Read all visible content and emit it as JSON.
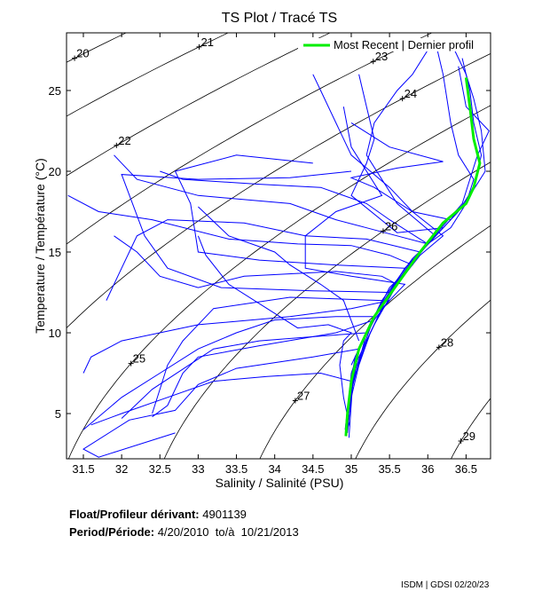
{
  "chart_data": {
    "type": "line",
    "title": "TS Plot / Tracé TS",
    "xlabel": "Salinity / Salinité (PSU)",
    "ylabel": "Temperature / Température (°C)",
    "xlim": [
      31.28,
      36.82
    ],
    "ylim": [
      2.2,
      28.57
    ],
    "xticks": [
      31.5,
      32,
      32.5,
      33,
      33.5,
      34,
      34.5,
      35,
      35.5,
      36,
      36.5
    ],
    "yticks": [
      5,
      10,
      15,
      20,
      25
    ],
    "legend": {
      "label": "Most Recent | Dernier profil",
      "placement": "top-right"
    },
    "density_contours": [
      {
        "sigma": 20,
        "label_T": 27.0
      },
      {
        "sigma": 21,
        "label_T": 27.7
      },
      {
        "sigma": 22,
        "label_T": 21.6
      },
      {
        "sigma": 23,
        "label_T": 26.8
      },
      {
        "sigma": 24,
        "label_T": 24.5
      },
      {
        "sigma": 25,
        "label_T": 8.1
      },
      {
        "sigma": 26,
        "label_T": 16.3
      },
      {
        "sigma": 27,
        "label_T": 5.8
      },
      {
        "sigma": 28,
        "label_T": 9.1
      },
      {
        "sigma": 29,
        "label_T": 3.3
      }
    ],
    "most_recent": {
      "color": "#00ee00",
      "points": [
        [
          34.93,
          3.6
        ],
        [
          34.95,
          5
        ],
        [
          35.0,
          7
        ],
        [
          35.1,
          9
        ],
        [
          35.3,
          11
        ],
        [
          35.6,
          13
        ],
        [
          35.9,
          15
        ],
        [
          36.2,
          16.8
        ],
        [
          36.5,
          18
        ],
        [
          36.6,
          19
        ],
        [
          36.68,
          20.5
        ],
        [
          36.6,
          22
        ],
        [
          36.55,
          24
        ],
        [
          36.5,
          25.8
        ]
      ]
    },
    "profiles_color": "#0000ff",
    "profiles": [
      [
        [
          34.95,
          3.8
        ],
        [
          35.0,
          6
        ],
        [
          35.1,
          8
        ],
        [
          35.25,
          10
        ],
        [
          35.5,
          12.5
        ],
        [
          35.8,
          14.5
        ],
        [
          36.1,
          16
        ],
        [
          36.4,
          17.5
        ],
        [
          36.6,
          19
        ],
        [
          36.7,
          21
        ],
        [
          36.6,
          23
        ],
        [
          36.55,
          25
        ],
        [
          36.45,
          27
        ]
      ],
      [
        [
          34.92,
          4
        ],
        [
          34.98,
          6.5
        ],
        [
          35.05,
          8.5
        ],
        [
          35.3,
          11
        ],
        [
          35.6,
          13.2
        ],
        [
          35.95,
          15.2
        ],
        [
          36.3,
          17
        ],
        [
          36.55,
          18.5
        ],
        [
          36.75,
          20
        ],
        [
          36.7,
          22.5
        ],
        [
          36.6,
          24.5
        ],
        [
          36.5,
          26
        ],
        [
          36.3,
          28
        ]
      ],
      [
        [
          34.97,
          3.5
        ],
        [
          35.02,
          7
        ],
        [
          35.2,
          9.5
        ],
        [
          35.45,
          12
        ],
        [
          35.75,
          14
        ],
        [
          36.05,
          15.8
        ],
        [
          36.45,
          18
        ],
        [
          36.65,
          21
        ],
        [
          36.8,
          22.5
        ],
        [
          36.5,
          24
        ],
        [
          36.4,
          26.5
        ]
      ],
      [
        [
          34.94,
          4.5
        ],
        [
          35.0,
          7.5
        ],
        [
          35.15,
          9.5
        ],
        [
          35.4,
          11.8
        ],
        [
          35.7,
          14
        ],
        [
          36.0,
          15.5
        ],
        [
          36.3,
          16.5
        ],
        [
          36.5,
          18
        ],
        [
          36.6,
          19.5
        ],
        [
          36.4,
          21
        ],
        [
          36.3,
          23
        ],
        [
          36.2,
          26
        ],
        [
          36.1,
          28
        ]
      ],
      [
        [
          34.95,
          4
        ],
        [
          35.05,
          8
        ],
        [
          35.3,
          10.5
        ],
        [
          35.6,
          13
        ],
        [
          35.9,
          14.8
        ],
        [
          36.2,
          16
        ],
        [
          35.8,
          17.5
        ],
        [
          35.5,
          19
        ],
        [
          35.0,
          21
        ],
        [
          34.8,
          23
        ],
        [
          34.6,
          25
        ],
        [
          34.5,
          26
        ]
      ],
      [
        [
          34.96,
          5
        ],
        [
          35.1,
          9
        ],
        [
          35.4,
          12
        ],
        [
          35.8,
          14.6
        ],
        [
          36.0,
          15.5
        ],
        [
          35.6,
          16
        ],
        [
          35.2,
          16.5
        ],
        [
          34.8,
          17
        ],
        [
          34.2,
          18
        ],
        [
          33.0,
          18.5
        ],
        [
          32.2,
          19.5
        ],
        [
          31.9,
          21
        ]
      ],
      [
        [
          34.98,
          6
        ],
        [
          35.2,
          10
        ],
        [
          35.5,
          12.8
        ],
        [
          35.8,
          14.2
        ],
        [
          35.5,
          14.8
        ],
        [
          35.0,
          15.4
        ],
        [
          34.3,
          15.5
        ],
        [
          33.4,
          15.8
        ],
        [
          32.4,
          17
        ],
        [
          31.7,
          17.5
        ],
        [
          31.3,
          18.5
        ]
      ],
      [
        [
          35.0,
          7
        ],
        [
          35.3,
          11
        ],
        [
          35.6,
          13
        ],
        [
          35.4,
          13.5
        ],
        [
          34.8,
          13.8
        ],
        [
          33.6,
          13.5
        ],
        [
          33.0,
          12.8
        ],
        [
          32.5,
          13.5
        ],
        [
          32.2,
          15
        ],
        [
          31.9,
          16
        ]
      ],
      [
        [
          35.0,
          8
        ],
        [
          35.25,
          10.5
        ],
        [
          35.5,
          12
        ],
        [
          35.0,
          11.5
        ],
        [
          34.2,
          11
        ],
        [
          33.0,
          10.5
        ],
        [
          32.0,
          9.5
        ],
        [
          31.6,
          8.5
        ],
        [
          31.5,
          7.5
        ]
      ],
      [
        [
          35.05,
          8.5
        ],
        [
          35.3,
          10.8
        ],
        [
          34.8,
          10
        ],
        [
          33.8,
          9.2
        ],
        [
          33.0,
          8.5
        ],
        [
          32.8,
          7.5
        ],
        [
          32.6,
          5.5
        ],
        [
          32.4,
          4.8
        ]
      ],
      [
        [
          35.0,
          7
        ],
        [
          34.6,
          7.5
        ],
        [
          33.9,
          7.3
        ],
        [
          33.2,
          7
        ],
        [
          32.6,
          6
        ],
        [
          32.0,
          5
        ],
        [
          31.6,
          4.3
        ]
      ],
      [
        [
          35.1,
          9
        ],
        [
          34.5,
          8.5
        ],
        [
          33.5,
          7.8
        ],
        [
          33.0,
          6.8
        ],
        [
          32.7,
          5.2
        ],
        [
          32.1,
          4.6
        ],
        [
          31.5,
          2.8
        ],
        [
          31.7,
          2.3
        ],
        [
          32.7,
          3.8
        ]
      ],
      [
        [
          35.2,
          10
        ],
        [
          34.6,
          9.8
        ],
        [
          33.8,
          9.5
        ],
        [
          33.2,
          9
        ],
        [
          32.4,
          6.5
        ],
        [
          32.0,
          4.7
        ]
      ],
      [
        [
          35.3,
          11
        ],
        [
          34.8,
          11
        ],
        [
          34.0,
          10.8
        ],
        [
          33.5,
          10
        ],
        [
          33.0,
          9
        ],
        [
          32.5,
          7.5
        ],
        [
          32.0,
          6
        ],
        [
          31.5,
          4
        ]
      ],
      [
        [
          35.4,
          12
        ],
        [
          34.2,
          12.2
        ],
        [
          33.2,
          11.5
        ],
        [
          32.8,
          9.5
        ],
        [
          32.6,
          8
        ],
        [
          32.4,
          5
        ]
      ],
      [
        [
          35.5,
          12.5
        ],
        [
          34.5,
          12.6
        ],
        [
          33.3,
          12.8
        ],
        [
          32.6,
          14
        ],
        [
          32.3,
          16
        ],
        [
          32.0,
          19.8
        ],
        [
          33.0,
          19.5
        ],
        [
          34.2,
          19.6
        ],
        [
          35.0,
          20
        ]
      ],
      [
        [
          35.7,
          14
        ],
        [
          34.8,
          14.2
        ],
        [
          33.8,
          14.5
        ],
        [
          33.0,
          15
        ],
        [
          32.9,
          18
        ],
        [
          32.7,
          20
        ],
        [
          33.5,
          21
        ],
        [
          34.5,
          20.5
        ]
      ],
      [
        [
          35.9,
          15
        ],
        [
          35.2,
          15.8
        ],
        [
          34.4,
          16
        ],
        [
          33.6,
          16.8
        ],
        [
          32.6,
          17
        ],
        [
          32.2,
          16
        ],
        [
          32.0,
          14
        ],
        [
          31.8,
          12
        ]
      ],
      [
        [
          36.0,
          15.5
        ],
        [
          35.5,
          17
        ],
        [
          35.2,
          18
        ],
        [
          34.6,
          19
        ],
        [
          33.8,
          19.2
        ],
        [
          32.8,
          19.5
        ],
        [
          32.5,
          20
        ]
      ],
      [
        [
          36.2,
          16.5
        ],
        [
          35.6,
          16.2
        ],
        [
          35.0,
          18.5
        ],
        [
          35.2,
          20.5
        ],
        [
          35.3,
          22
        ],
        [
          35.2,
          24
        ],
        [
          35.1,
          26
        ]
      ],
      [
        [
          36.3,
          17
        ],
        [
          35.8,
          17.5
        ],
        [
          35.3,
          19
        ],
        [
          35.0,
          19.6
        ],
        [
          35.6,
          20.2
        ],
        [
          36.2,
          20.6
        ],
        [
          35.5,
          21.5
        ],
        [
          35.0,
          23
        ]
      ],
      [
        [
          36.1,
          16
        ],
        [
          35.6,
          18
        ],
        [
          35.2,
          21
        ],
        [
          35.3,
          23
        ],
        [
          35.6,
          25
        ],
        [
          35.8,
          26
        ],
        [
          36.0,
          27.5
        ]
      ],
      [
        [
          34.98,
          4.2
        ],
        [
          34.9,
          6
        ],
        [
          34.85,
          8
        ],
        [
          34.9,
          9.5
        ],
        [
          35.0,
          10
        ],
        [
          34.7,
          10.5
        ],
        [
          34.3,
          10.3
        ],
        [
          33.9,
          11.5
        ],
        [
          33.4,
          13
        ],
        [
          33.1,
          14.8
        ],
        [
          33.0,
          16
        ]
      ],
      [
        [
          35.1,
          9.5
        ],
        [
          34.9,
          12
        ],
        [
          34.6,
          13
        ],
        [
          34.2,
          14.2
        ],
        [
          34.0,
          15
        ],
        [
          33.4,
          16
        ],
        [
          33.0,
          17.8
        ]
      ],
      [
        [
          35.4,
          11.5
        ],
        [
          35.7,
          13
        ],
        [
          35.0,
          13.5
        ],
        [
          34.4,
          14
        ],
        [
          34.4,
          16
        ],
        [
          34.8,
          17.5
        ],
        [
          35.4,
          18.5
        ],
        [
          35.0,
          21.5
        ],
        [
          34.9,
          24
        ]
      ]
    ]
  },
  "info": {
    "float_label": "Float/Profileur dérivant:",
    "float_value": "4901139",
    "period_label": "Period/Période:",
    "period_value": "4/20/2010  to/à  10/21/2013"
  },
  "footer": "ISDM | GDSI 02/20/23"
}
